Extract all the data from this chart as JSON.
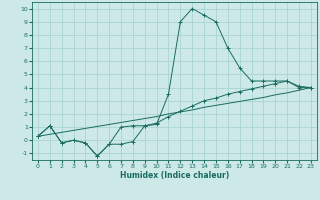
{
  "xlabel": "Humidex (Indice chaleur)",
  "bg_color": "#cce9e8",
  "grid_color": "#aad4d2",
  "line_color": "#1a6b60",
  "xlim": [
    -0.5,
    23.5
  ],
  "ylim": [
    -1.5,
    10.5
  ],
  "xticks": [
    0,
    1,
    2,
    3,
    4,
    5,
    6,
    7,
    8,
    9,
    10,
    11,
    12,
    13,
    14,
    15,
    16,
    17,
    18,
    19,
    20,
    21,
    22,
    23
  ],
  "yticks": [
    -1,
    0,
    1,
    2,
    3,
    4,
    5,
    6,
    7,
    8,
    9,
    10
  ],
  "series": [
    [
      0.3,
      1.1,
      -0.2,
      0.0,
      -0.2,
      -1.2,
      -0.3,
      -0.3,
      -0.1,
      1.1,
      1.2,
      3.5,
      9.0,
      10.0,
      9.5,
      9.0,
      7.0,
      5.5,
      4.5,
      4.5,
      4.5,
      4.5,
      4.0,
      4.0
    ],
    [
      0.3,
      1.1,
      -0.2,
      0.0,
      -0.2,
      -1.2,
      -0.3,
      1.0,
      1.1,
      1.1,
      1.3,
      1.8,
      2.2,
      2.6,
      3.0,
      3.2,
      3.5,
      3.7,
      3.9,
      4.1,
      4.3,
      4.5,
      4.1,
      4.0
    ],
    [
      0.3,
      0.45,
      0.6,
      0.75,
      0.9,
      1.05,
      1.2,
      1.35,
      1.5,
      1.65,
      1.8,
      2.0,
      2.15,
      2.3,
      2.5,
      2.65,
      2.8,
      2.95,
      3.1,
      3.25,
      3.45,
      3.6,
      3.8,
      4.0
    ]
  ]
}
